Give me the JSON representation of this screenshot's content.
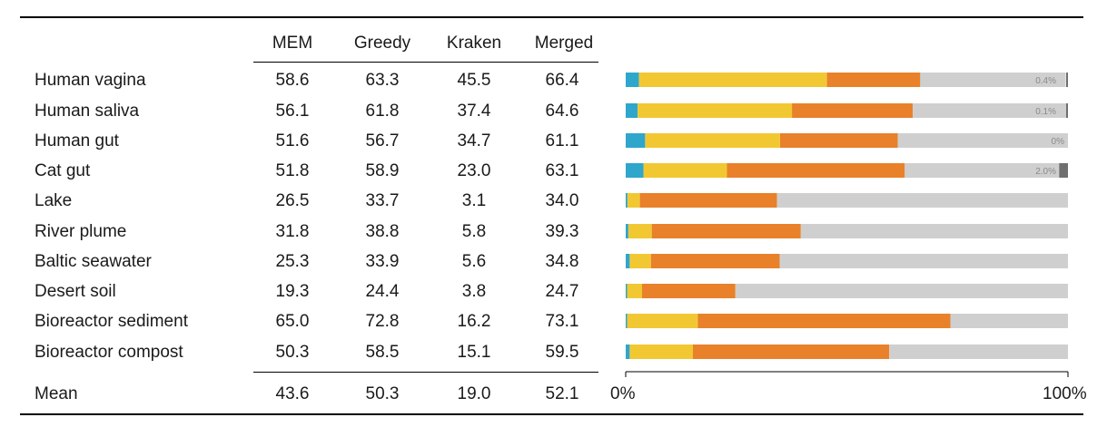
{
  "table": {
    "columns": [
      "MEM",
      "Greedy",
      "Kraken",
      "Merged"
    ],
    "rows": [
      {
        "label": "Human vagina",
        "values": [
          "58.6",
          "63.3",
          "45.5",
          "66.4"
        ]
      },
      {
        "label": "Human saliva",
        "values": [
          "56.1",
          "61.8",
          "37.4",
          "64.6"
        ]
      },
      {
        "label": "Human gut",
        "values": [
          "51.6",
          "56.7",
          "34.7",
          "61.1"
        ]
      },
      {
        "label": "Cat gut",
        "values": [
          "51.8",
          "58.9",
          "23.0",
          "63.1"
        ]
      },
      {
        "label": "Lake",
        "values": [
          "26.5",
          "33.7",
          "3.1",
          "34.0"
        ]
      },
      {
        "label": "River plume",
        "values": [
          "31.8",
          "38.8",
          "5.8",
          "39.3"
        ]
      },
      {
        "label": "Baltic seawater",
        "values": [
          "25.3",
          "33.9",
          "5.6",
          "34.8"
        ]
      },
      {
        "label": "Desert soil",
        "values": [
          "19.3",
          "24.4",
          "3.8",
          "24.7"
        ]
      },
      {
        "label": "Bioreactor sediment",
        "values": [
          "65.0",
          "72.8",
          "16.2",
          "73.1"
        ]
      },
      {
        "label": "Bioreactor compost",
        "values": [
          "50.3",
          "58.5",
          "15.1",
          "59.5"
        ]
      }
    ],
    "mean": {
      "label": "Mean",
      "values": [
        "43.6",
        "50.3",
        "19.0",
        "52.1"
      ]
    }
  },
  "chart_data": {
    "type": "bar",
    "orientation": "horizontal",
    "stacked": true,
    "xlim": [
      0,
      100
    ],
    "x_ticks": [
      "0%",
      "100%"
    ],
    "categories": [
      "Human vagina",
      "Human saliva",
      "Human gut",
      "Cat gut",
      "Lake",
      "River plume",
      "Baltic seawater",
      "Desert soil",
      "Bioreactor sediment",
      "Bioreactor compost"
    ],
    "series": [
      {
        "name": "blue",
        "color": "#2fa6cc",
        "values": [
          3.0,
          2.7,
          4.4,
          4.0,
          0.4,
          0.6,
          0.9,
          0.3,
          0.3,
          0.9
        ]
      },
      {
        "name": "yellow",
        "color": "#f2c832",
        "values": [
          42.5,
          34.9,
          30.5,
          18.9,
          2.8,
          5.3,
          4.8,
          3.4,
          16.0,
          14.3
        ]
      },
      {
        "name": "orange",
        "color": "#e8812a",
        "values": [
          21.1,
          27.3,
          26.6,
          40.2,
          31.0,
          33.7,
          29.1,
          21.1,
          57.1,
          44.4
        ]
      },
      {
        "name": "grey",
        "color": "#cfcfcf",
        "values": [
          32.9,
          35.1,
          38.5,
          34.9,
          65.8,
          60.4,
          65.2,
          75.2,
          26.6,
          40.4
        ]
      },
      {
        "name": "darkgrey",
        "color": "#6f6f6f",
        "values": [
          0.4,
          0.1,
          0.0,
          2.0,
          0,
          0,
          0,
          0,
          0,
          0
        ]
      }
    ],
    "annotations": [
      "0.4%",
      "0.1%",
      "0%",
      "2.0%",
      "",
      "",
      "",
      "",
      "",
      ""
    ]
  }
}
